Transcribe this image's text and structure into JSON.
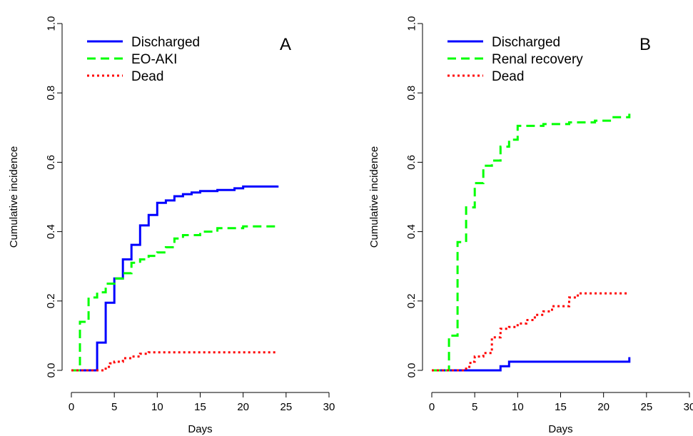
{
  "chart_data": [
    {
      "type": "line",
      "panel_label": "A",
      "xlabel": "Days",
      "ylabel": "Cumulative incidence",
      "xlim": [
        0,
        30
      ],
      "ylim": [
        0,
        1
      ],
      "xticks": [
        "0",
        "5",
        "10",
        "15",
        "20",
        "25",
        "30"
      ],
      "yticks": [
        "0.0",
        "0.2",
        "0.4",
        "0.6",
        "0.8",
        "1.0"
      ],
      "legend_position": "top-left",
      "series": [
        {
          "name": "Discharged",
          "color": "#0000ff",
          "dash": "solid",
          "points": [
            [
              0,
              0
            ],
            [
              3,
              0
            ],
            [
              3,
              0.08
            ],
            [
              4,
              0.08
            ],
            [
              4,
              0.195
            ],
            [
              5,
              0.195
            ],
            [
              5,
              0.265
            ],
            [
              6,
              0.265
            ],
            [
              6,
              0.32
            ],
            [
              7,
              0.32
            ],
            [
              7,
              0.362
            ],
            [
              8,
              0.362
            ],
            [
              8,
              0.418
            ],
            [
              9,
              0.418
            ],
            [
              9,
              0.448
            ],
            [
              10,
              0.448
            ],
            [
              10,
              0.483
            ],
            [
              11,
              0.483
            ],
            [
              11,
              0.49
            ],
            [
              12,
              0.49
            ],
            [
              12,
              0.502
            ],
            [
              13,
              0.502
            ],
            [
              13,
              0.508
            ],
            [
              14,
              0.508
            ],
            [
              14,
              0.513
            ],
            [
              15,
              0.513
            ],
            [
              15,
              0.517
            ],
            [
              17,
              0.517
            ],
            [
              17,
              0.52
            ],
            [
              19,
              0.52
            ],
            [
              19,
              0.525
            ],
            [
              20,
              0.525
            ],
            [
              20,
              0.53
            ],
            [
              24,
              0.53
            ],
            [
              24,
              0.533
            ]
          ]
        },
        {
          "name": "EO-AKI",
          "color": "#00ff00",
          "dash": "dashed",
          "points": [
            [
              0,
              0
            ],
            [
              1,
              0
            ],
            [
              1,
              0.14
            ],
            [
              2,
              0.14
            ],
            [
              2,
              0.21
            ],
            [
              3,
              0.21
            ],
            [
              3,
              0.225
            ],
            [
              4,
              0.225
            ],
            [
              4,
              0.25
            ],
            [
              5,
              0.25
            ],
            [
              5,
              0.265
            ],
            [
              6,
              0.265
            ],
            [
              6,
              0.28
            ],
            [
              7,
              0.28
            ],
            [
              7,
              0.31
            ],
            [
              8,
              0.31
            ],
            [
              8,
              0.32
            ],
            [
              9,
              0.32
            ],
            [
              9,
              0.33
            ],
            [
              10,
              0.33
            ],
            [
              10,
              0.34
            ],
            [
              11,
              0.34
            ],
            [
              11,
              0.355
            ],
            [
              12,
              0.355
            ],
            [
              12,
              0.38
            ],
            [
              13,
              0.38
            ],
            [
              13,
              0.39
            ],
            [
              15,
              0.39
            ],
            [
              15,
              0.4
            ],
            [
              17,
              0.4
            ],
            [
              17,
              0.41
            ],
            [
              20,
              0.41
            ],
            [
              20,
              0.415
            ],
            [
              24,
              0.415
            ]
          ]
        },
        {
          "name": "Dead",
          "color": "#ff0000",
          "dash": "dotted",
          "points": [
            [
              0,
              0
            ],
            [
              4,
              0
            ],
            [
              4,
              0.01
            ],
            [
              4.5,
              0.01
            ],
            [
              4.5,
              0.02
            ],
            [
              5,
              0.02
            ],
            [
              5,
              0.025
            ],
            [
              6,
              0.025
            ],
            [
              6,
              0.035
            ],
            [
              7,
              0.035
            ],
            [
              7,
              0.04
            ],
            [
              8,
              0.04
            ],
            [
              8,
              0.048
            ],
            [
              9,
              0.048
            ],
            [
              9,
              0.052
            ],
            [
              24,
              0.052
            ]
          ]
        }
      ]
    },
    {
      "type": "line",
      "panel_label": "B",
      "xlabel": "Days",
      "ylabel": "Cumulative incidence",
      "xlim": [
        0,
        30
      ],
      "ylim": [
        0,
        1
      ],
      "xticks": [
        "0",
        "5",
        "10",
        "15",
        "20",
        "25",
        "30"
      ],
      "yticks": [
        "0.0",
        "0.2",
        "0.4",
        "0.6",
        "0.8",
        "1.0"
      ],
      "legend_position": "top-left",
      "series": [
        {
          "name": "Discharged",
          "color": "#0000ff",
          "dash": "solid",
          "points": [
            [
              0,
              0
            ],
            [
              8,
              0
            ],
            [
              8,
              0.012
            ],
            [
              9,
              0.012
            ],
            [
              9,
              0.025
            ],
            [
              23,
              0.025
            ],
            [
              23,
              0.038
            ]
          ]
        },
        {
          "name": "Renal recovery",
          "color": "#00ff00",
          "dash": "dashed",
          "points": [
            [
              0,
              0
            ],
            [
              2,
              0
            ],
            [
              2,
              0.1
            ],
            [
              3,
              0.1
            ],
            [
              3,
              0.37
            ],
            [
              4,
              0.37
            ],
            [
              4,
              0.47
            ],
            [
              5,
              0.47
            ],
            [
              5,
              0.54
            ],
            [
              6,
              0.54
            ],
            [
              6,
              0.59
            ],
            [
              7,
              0.59
            ],
            [
              7,
              0.605
            ],
            [
              8,
              0.605
            ],
            [
              8,
              0.645
            ],
            [
              9,
              0.645
            ],
            [
              9,
              0.665
            ],
            [
              10,
              0.665
            ],
            [
              10,
              0.705
            ],
            [
              13,
              0.705
            ],
            [
              13,
              0.71
            ],
            [
              16,
              0.71
            ],
            [
              16,
              0.715
            ],
            [
              19,
              0.715
            ],
            [
              19,
              0.72
            ],
            [
              21,
              0.72
            ],
            [
              21,
              0.73
            ],
            [
              23,
              0.73
            ],
            [
              23,
              0.74
            ]
          ]
        },
        {
          "name": "Dead",
          "color": "#ff0000",
          "dash": "dotted",
          "points": [
            [
              0,
              0
            ],
            [
              4,
              0
            ],
            [
              4,
              0.01
            ],
            [
              4.5,
              0.01
            ],
            [
              4.5,
              0.025
            ],
            [
              5,
              0.025
            ],
            [
              5,
              0.04
            ],
            [
              6,
              0.04
            ],
            [
              6,
              0.05
            ],
            [
              7,
              0.05
            ],
            [
              7,
              0.095
            ],
            [
              8,
              0.095
            ],
            [
              8,
              0.12
            ],
            [
              9,
              0.12
            ],
            [
              9,
              0.125
            ],
            [
              10,
              0.125
            ],
            [
              10,
              0.135
            ],
            [
              11,
              0.135
            ],
            [
              11,
              0.145
            ],
            [
              12,
              0.145
            ],
            [
              12,
              0.16
            ],
            [
              13,
              0.16
            ],
            [
              13,
              0.17
            ],
            [
              14,
              0.17
            ],
            [
              14,
              0.185
            ],
            [
              16,
              0.185
            ],
            [
              16,
              0.21
            ],
            [
              17,
              0.21
            ],
            [
              17,
              0.222
            ],
            [
              23,
              0.222
            ]
          ]
        }
      ]
    }
  ]
}
